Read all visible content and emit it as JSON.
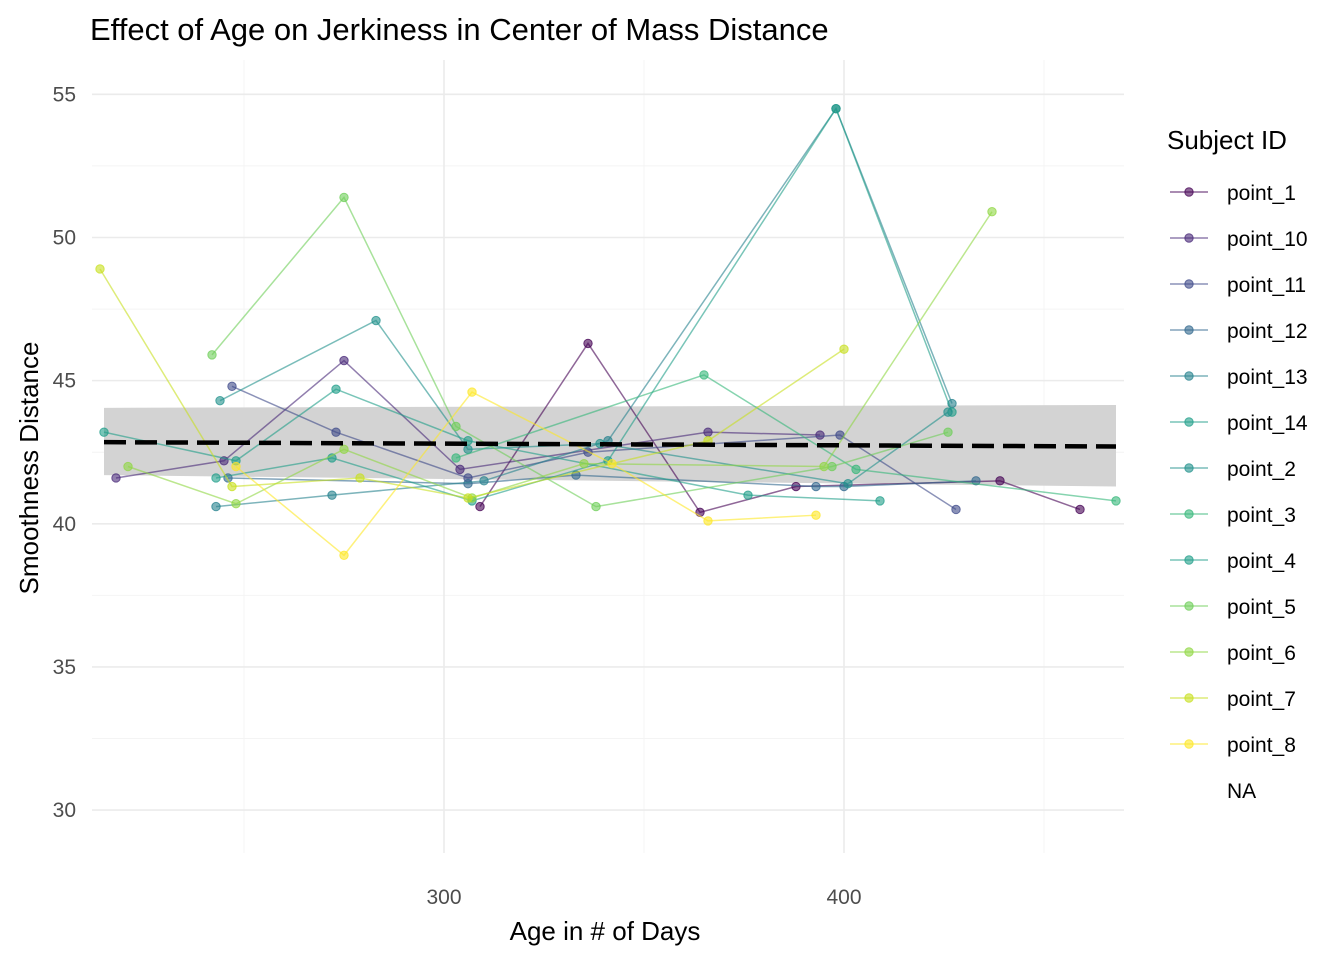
{
  "chart_data": {
    "type": "line",
    "title": "Effect of Age on Jerkiness in Center of Mass Distance",
    "xlabel": "Age in # of Days",
    "ylabel": "Smoothness Distance",
    "xlim": [
      212,
      470
    ],
    "ylim": [
      28.5,
      56.2
    ],
    "x_ticks": [
      300,
      400
    ],
    "x_minor_ticks": [
      250,
      350,
      450
    ],
    "y_ticks": [
      30,
      35,
      40,
      45,
      50,
      55
    ],
    "y_minor_ticks": [
      32.5,
      37.5,
      42.5,
      47.5,
      52.5
    ],
    "grid": true,
    "legend": {
      "title": "Subject ID",
      "position": "right",
      "entries": [
        "point_1",
        "point_10",
        "point_11",
        "point_12",
        "point_13",
        "point_14",
        "point_2",
        "point_3",
        "point_4",
        "point_5",
        "point_6",
        "point_7",
        "point_8",
        "NA"
      ]
    },
    "series": [
      {
        "name": "point_1",
        "color": "#440154",
        "x": [
          309,
          336,
          364,
          388,
          439,
          459
        ],
        "y": [
          40.6,
          46.3,
          40.4,
          41.3,
          41.5,
          40.5
        ]
      },
      {
        "name": "point_10",
        "color": "#482878",
        "x": [
          218,
          245,
          275,
          304,
          366,
          394
        ],
        "y": [
          41.6,
          42.2,
          45.7,
          41.9,
          43.2,
          43.1
        ]
      },
      {
        "name": "point_11",
        "color": "#3e4989",
        "x": [
          247,
          273,
          306,
          336,
          399,
          428
        ],
        "y": [
          44.8,
          43.2,
          41.6,
          42.5,
          43.1,
          40.5
        ]
      },
      {
        "name": "point_12",
        "color": "#31688e",
        "x": [
          246,
          306,
          333,
          393,
          400,
          433
        ],
        "y": [
          41.6,
          41.4,
          41.7,
          41.3,
          41.3,
          41.5
        ]
      },
      {
        "name": "point_13",
        "color": "#26828e",
        "x": [
          243,
          272,
          310,
          341,
          398,
          427
        ],
        "y": [
          40.6,
          41.0,
          41.5,
          42.9,
          54.5,
          44.2
        ]
      },
      {
        "name": "point_14",
        "color": "#1f9e89",
        "x": [
          243,
          272,
          307,
          341,
          398,
          427
        ],
        "y": [
          41.6,
          42.3,
          40.8,
          42.2,
          54.5,
          43.9
        ]
      },
      {
        "name": "point_2",
        "color": "#21918c",
        "x": [
          244,
          283,
          306,
          339,
          401,
          426
        ],
        "y": [
          44.3,
          47.1,
          42.6,
          42.8,
          41.4,
          43.9
        ]
      },
      {
        "name": "point_3",
        "color": "#35b779",
        "x": [
          303,
          365,
          403,
          468
        ],
        "y": [
          42.3,
          45.2,
          41.9,
          40.8
        ]
      },
      {
        "name": "point_4",
        "color": "#1f9e89",
        "x": [
          215,
          248,
          273,
          306,
          376,
          409
        ],
        "y": [
          43.2,
          42.2,
          44.7,
          42.9,
          41.0,
          40.8
        ]
      },
      {
        "name": "point_5",
        "color": "#6ece58",
        "x": [
          242,
          275,
          303,
          338,
          397,
          426
        ],
        "y": [
          45.9,
          51.4,
          43.4,
          40.6,
          42.0,
          43.2
        ]
      },
      {
        "name": "point_6",
        "color": "#90d743",
        "x": [
          221,
          248,
          275,
          307,
          335,
          395,
          437
        ],
        "y": [
          42.0,
          40.7,
          42.6,
          40.9,
          42.1,
          42.0,
          50.9
        ]
      },
      {
        "name": "point_7",
        "color": "#c8e020",
        "x": [
          214,
          247,
          279,
          306,
          366,
          400
        ],
        "y": [
          48.9,
          41.3,
          41.6,
          40.9,
          42.9,
          46.1
        ]
      },
      {
        "name": "point_8",
        "color": "#fde725",
        "x": [
          248,
          275,
          307,
          342,
          366,
          393
        ],
        "y": [
          42.0,
          38.9,
          44.6,
          42.1,
          40.1,
          40.3
        ]
      }
    ],
    "trend": {
      "x": [
        215,
        468
      ],
      "y": [
        42.85,
        42.7
      ],
      "ci_lower": [
        41.7,
        41.3
      ],
      "ci_upper": [
        44.05,
        44.15
      ],
      "line_color": "#000000",
      "ci_color": "#d3d3d3"
    }
  }
}
